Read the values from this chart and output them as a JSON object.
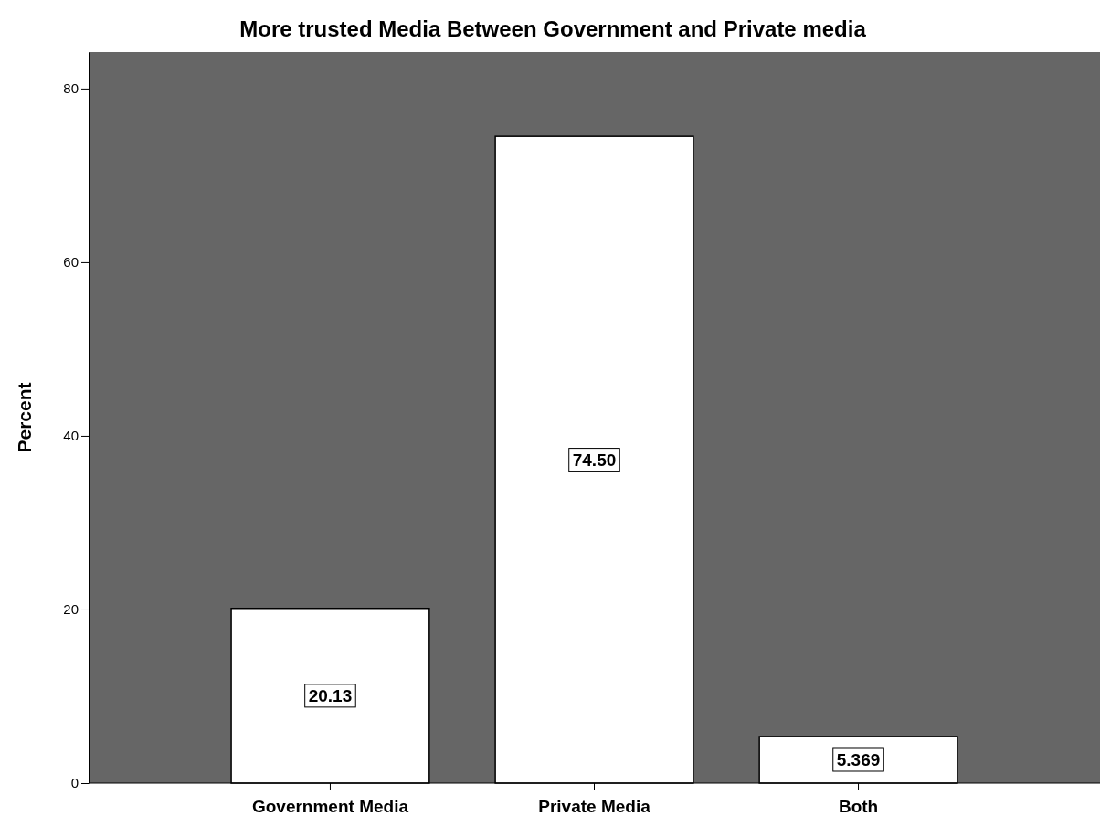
{
  "chart_data": {
    "type": "bar",
    "title": "More trusted Media Between Government and Private media",
    "ylabel": "Percent",
    "categories": [
      "Government Media",
      "Private Media",
      "Both"
    ],
    "values": [
      20.13,
      74.5,
      5.369
    ],
    "value_labels": [
      "20.13",
      "74.50",
      "5.369"
    ],
    "color": "#ffffff",
    "ylim": [
      0,
      84.2
    ],
    "yticks": [
      0,
      20,
      40,
      60,
      80
    ],
    "grid": false
  }
}
